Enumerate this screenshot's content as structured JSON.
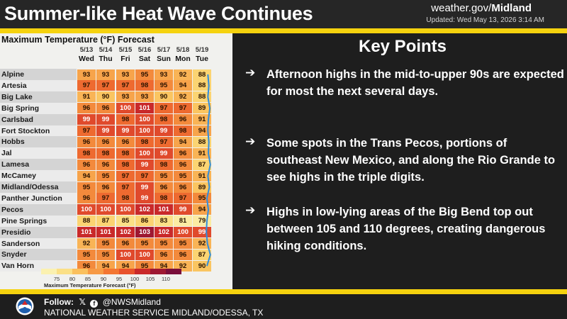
{
  "header": {
    "title": "Summer-like Heat Wave Continues",
    "site_prefix": "weather.gov/",
    "site_office": "Midland",
    "updated": "Updated: Wed May 13, 2026 3:14 AM"
  },
  "forecast_table": {
    "title": "Maximum Temperature (°F) Forecast",
    "days": [
      {
        "date": "5/13",
        "day": "Wed"
      },
      {
        "date": "5/14",
        "day": "Thu"
      },
      {
        "date": "5/15",
        "day": "Fri"
      },
      {
        "date": "5/16",
        "day": "Sat"
      },
      {
        "date": "5/17",
        "day": "Sun"
      },
      {
        "date": "5/18",
        "day": "Mon"
      },
      {
        "date": "5/19",
        "day": "Tue"
      }
    ],
    "rows": [
      {
        "name": "Alpine",
        "values": [
          93,
          93,
          93,
          95,
          93,
          92,
          88
        ]
      },
      {
        "name": "Artesia",
        "values": [
          97,
          97,
          97,
          98,
          95,
          94,
          88
        ]
      },
      {
        "name": "Big Lake",
        "values": [
          91,
          90,
          93,
          93,
          90,
          92,
          88
        ]
      },
      {
        "name": "Big Spring",
        "values": [
          96,
          96,
          100,
          101,
          97,
          97,
          89
        ]
      },
      {
        "name": "Carlsbad",
        "values": [
          99,
          99,
          98,
          100,
          98,
          96,
          91
        ]
      },
      {
        "name": "Fort Stockton",
        "values": [
          97,
          99,
          99,
          100,
          99,
          98,
          94
        ]
      },
      {
        "name": "Hobbs",
        "values": [
          96,
          96,
          96,
          98,
          97,
          94,
          88
        ]
      },
      {
        "name": "Jal",
        "values": [
          98,
          98,
          98,
          100,
          99,
          96,
          91
        ]
      },
      {
        "name": "Lamesa",
        "values": [
          96,
          96,
          98,
          99,
          98,
          96,
          87
        ]
      },
      {
        "name": "McCamey",
        "values": [
          94,
          95,
          97,
          97,
          95,
          95,
          91
        ]
      },
      {
        "name": "Midland/Odessa",
        "values": [
          95,
          96,
          97,
          99,
          96,
          96,
          89
        ]
      },
      {
        "name": "Panther Junction",
        "values": [
          96,
          97,
          98,
          99,
          98,
          97,
          95
        ]
      },
      {
        "name": "Pecos",
        "values": [
          100,
          100,
          100,
          102,
          101,
          99,
          94
        ]
      },
      {
        "name": "Pine Springs",
        "values": [
          88,
          87,
          85,
          86,
          83,
          81,
          79
        ]
      },
      {
        "name": "Presidio",
        "values": [
          101,
          101,
          102,
          103,
          102,
          100,
          99
        ]
      },
      {
        "name": "Sanderson",
        "values": [
          92,
          95,
          96,
          95,
          95,
          95,
          92
        ]
      },
      {
        "name": "Snyder",
        "values": [
          95,
          95,
          100,
          100,
          96,
          96,
          87
        ]
      },
      {
        "name": "Van Horn",
        "values": [
          96,
          94,
          94,
          95,
          94,
          92,
          90
        ]
      }
    ],
    "legend": {
      "ticks": [
        "75",
        "80",
        "85",
        "90",
        "95",
        "100",
        "105",
        "110"
      ],
      "label": "Maximum Temperature Forecast (°F)",
      "colors": [
        "#fbf1b0",
        "#fbe086",
        "#fac05e",
        "#f79a45",
        "#f37632",
        "#e8522c",
        "#c9292a",
        "#9e1832",
        "#7a0e3a"
      ]
    }
  },
  "key_points": {
    "title": "Key Points",
    "arrow": "➔",
    "items": [
      "Afternoon highs in the mid-to-upper 90s are expected for most the next several days.",
      "Some spots in the Trans Pecos, portions of southeast New Mexico, and along the Rio Grande to see highs in the triple digits.",
      "Highs in low-lying areas of the Big Bend top out between 105 and 110 degrees, creating dangerous hiking conditions."
    ]
  },
  "footer": {
    "follow_label": "Follow:",
    "handle": "@NWSMidland",
    "office": "NATIONAL WEATHER SERVICE MIDLAND/ODESSA, TX"
  },
  "colors": {
    "accent_gold": "#f5d20e",
    "panel_dark": "#1e1e1e"
  }
}
